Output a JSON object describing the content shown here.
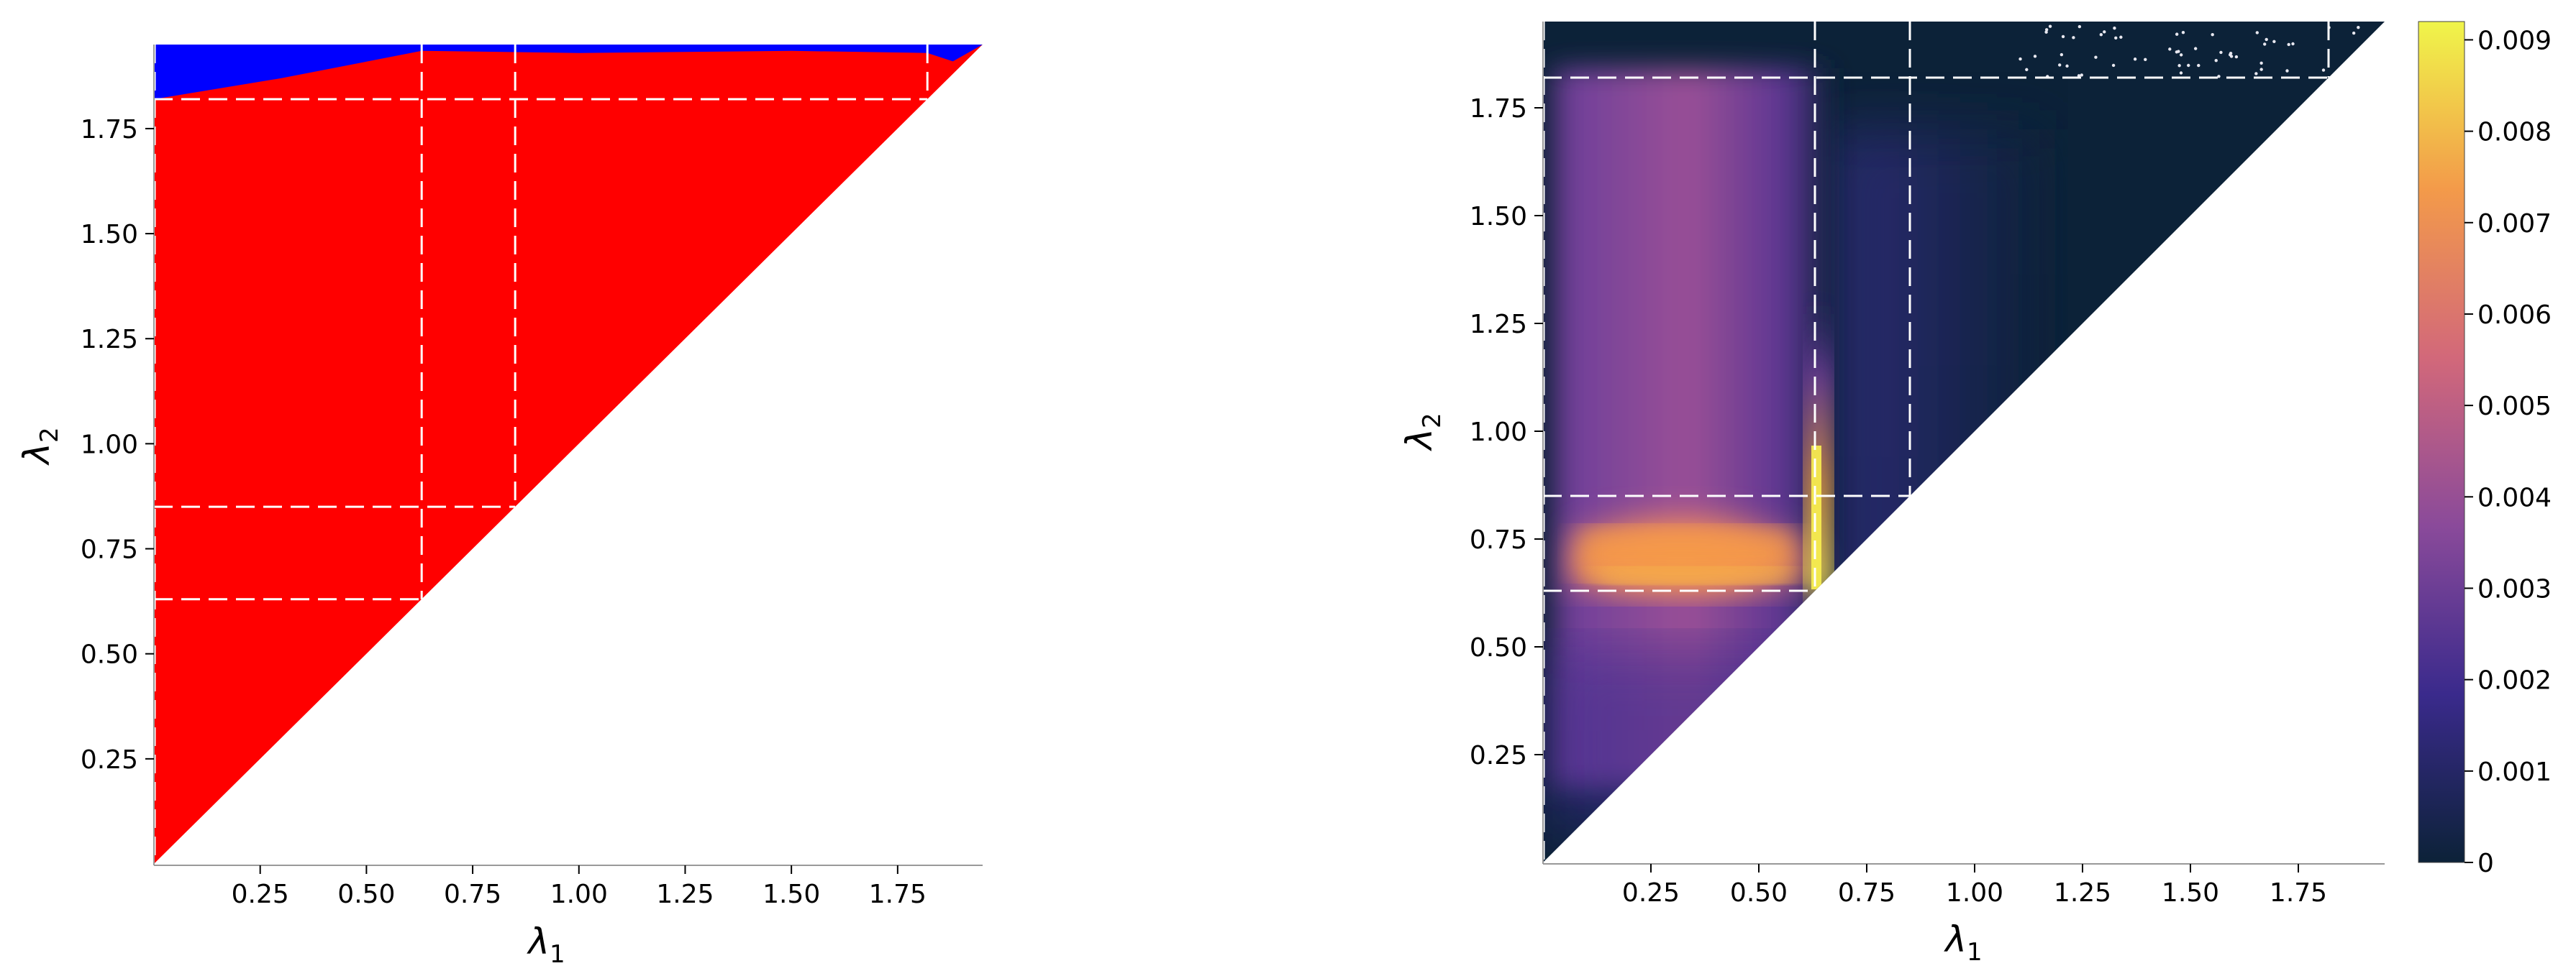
{
  "chart_data": [
    {
      "type": "heatmap",
      "description_of_regions": "binary region map",
      "xlabel": "λ",
      "xlabel_sub": "1",
      "ylabel": "λ",
      "ylabel_sub": "2",
      "xlim": [
        0,
        1.95
      ],
      "ylim": [
        0,
        1.95
      ],
      "x_ticks": [
        "0.25",
        "0.50",
        "0.75",
        "1.00",
        "1.25",
        "1.50",
        "1.75"
      ],
      "y_ticks": [
        "0.25",
        "0.50",
        "0.75",
        "1.00",
        "1.25",
        "1.50",
        "1.75"
      ],
      "x_tick_values": [
        0.25,
        0.5,
        0.75,
        1.0,
        1.25,
        1.5,
        1.75
      ],
      "y_tick_values": [
        0.25,
        0.5,
        0.75,
        1.0,
        1.25,
        1.5,
        1.75
      ],
      "region_colors": {
        "lower": "#ff0000",
        "upper": "#0000ff"
      },
      "blue_boundary": [
        [
          0,
          1.82
        ],
        [
          0.3,
          1.87
        ],
        [
          0.63,
          1.935
        ],
        [
          1.0,
          1.93
        ],
        [
          1.5,
          1.935
        ],
        [
          1.82,
          1.93
        ],
        [
          1.88,
          1.91
        ],
        [
          1.95,
          1.95
        ]
      ],
      "dashed_lines": {
        "vertical": [
          0.63,
          0.85,
          1.82
        ],
        "horizontal": [
          0.63,
          0.85,
          1.82
        ]
      },
      "grid": false
    },
    {
      "type": "heatmap",
      "xlabel": "λ",
      "xlabel_sub": "1",
      "ylabel": "λ",
      "ylabel_sub": "2",
      "xlim": [
        0,
        1.95
      ],
      "ylim": [
        0,
        1.95
      ],
      "x_ticks": [
        "0.25",
        "0.50",
        "0.75",
        "1.00",
        "1.25",
        "1.50",
        "1.75"
      ],
      "y_ticks": [
        "0.25",
        "0.50",
        "0.75",
        "1.00",
        "1.25",
        "1.50",
        "1.75"
      ],
      "x_tick_values": [
        0.25,
        0.5,
        0.75,
        1.0,
        1.25,
        1.5,
        1.75
      ],
      "y_tick_values": [
        0.25,
        0.5,
        0.75,
        1.0,
        1.25,
        1.5,
        1.75
      ],
      "colorbar": {
        "ticks": [
          "0",
          "0.001",
          "0.002",
          "0.003",
          "0.004",
          "0.005",
          "0.006",
          "0.007",
          "0.008",
          "0.009"
        ],
        "tick_values": [
          0,
          0.001,
          0.002,
          0.003,
          0.004,
          0.005,
          0.006,
          0.007,
          0.008,
          0.009
        ],
        "range": [
          0,
          0.0092
        ],
        "colormap": [
          "#0c2238",
          "#3a2a8c",
          "#8a4a9a",
          "#d2687a",
          "#f39a4a",
          "#f0f54a"
        ]
      },
      "features": {
        "hot_band": {
          "x": [
            0.0,
            0.63
          ],
          "y": [
            0.63,
            0.85
          ],
          "peak_value": 0.0072
        },
        "vertical_ridge": {
          "x": 0.63,
          "y": [
            0.63,
            1.1
          ],
          "peak_value": 0.0092
        },
        "purple_column": {
          "x": [
            0.0,
            0.55
          ],
          "y": [
            0.85,
            1.82
          ],
          "value": 0.004
        }
      },
      "dashed_lines": {
        "vertical": [
          0.63,
          0.85,
          1.82
        ],
        "horizontal": [
          0.63,
          0.85,
          1.82
        ]
      },
      "grid": false
    }
  ]
}
